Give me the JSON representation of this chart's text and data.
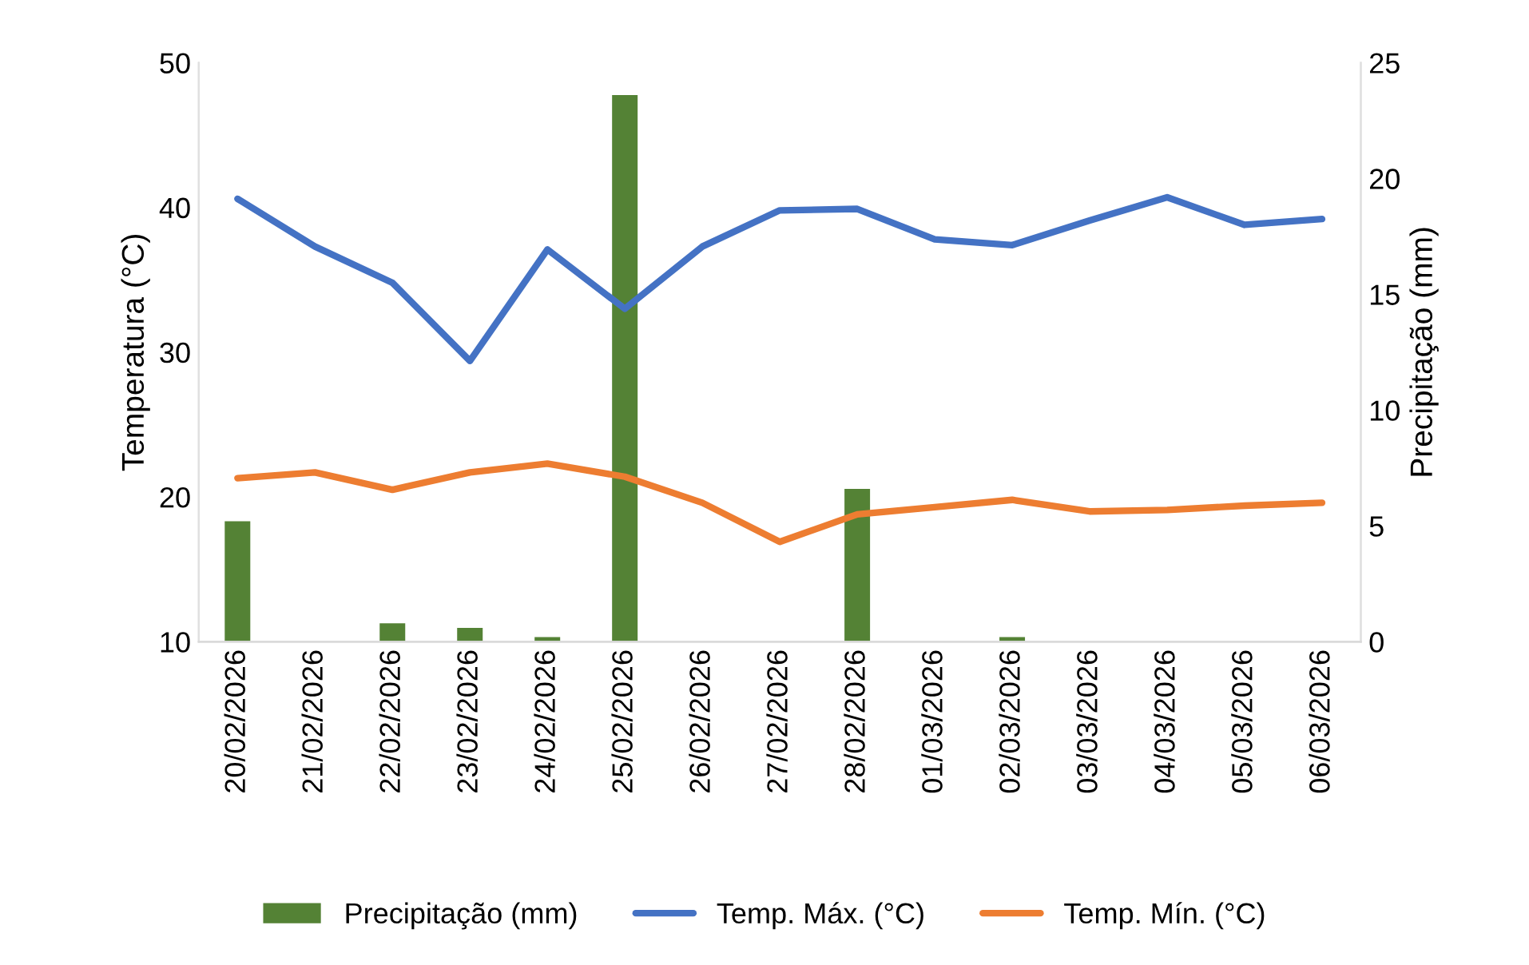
{
  "chart_data": {
    "type": "line",
    "ylabel": "Temperatura (°C)",
    "y2label": "Precipitação (mm)",
    "categories": [
      "20/02/2026",
      "21/02/2026",
      "22/02/2026",
      "23/02/2026",
      "24/02/2026",
      "25/02/2026",
      "26/02/2026",
      "27/02/2026",
      "28/02/2026",
      "01/03/2026",
      "02/03/2026",
      "03/03/2026",
      "04/03/2026",
      "05/03/2026",
      "06/03/2026"
    ],
    "series": [
      {
        "name": "Precipitação (mm)",
        "type": "bar",
        "axis": "y2",
        "color": "#548235",
        "values": [
          5.2,
          0,
          0.8,
          0.6,
          0.2,
          23.6,
          0,
          0,
          6.6,
          0,
          0.2,
          0,
          0,
          0,
          0
        ]
      },
      {
        "name": "Temp. Máx. (°C)",
        "color": "#4472c4",
        "values": [
          40.6,
          37.3,
          34.8,
          29.4,
          37.1,
          33.0,
          37.3,
          39.8,
          39.9,
          37.8,
          37.4,
          39.1,
          40.7,
          38.8,
          39.2
        ]
      },
      {
        "name": "Temp. Mín. (°C)",
        "color": "#ed7d31",
        "values": [
          21.3,
          21.7,
          20.5,
          21.7,
          22.3,
          21.4,
          19.6,
          16.9,
          18.8,
          19.3,
          19.8,
          19.0,
          19.1,
          19.4,
          19.6
        ]
      }
    ],
    "ylim": [
      10,
      50
    ],
    "yticks": [
      10,
      20,
      30,
      40,
      50
    ],
    "y2lim": [
      0,
      25
    ],
    "y2ticks": [
      0,
      5,
      10,
      15,
      20,
      25
    ],
    "legend": "bottom",
    "grid": false,
    "marker": "none",
    "line_style": "solid"
  }
}
